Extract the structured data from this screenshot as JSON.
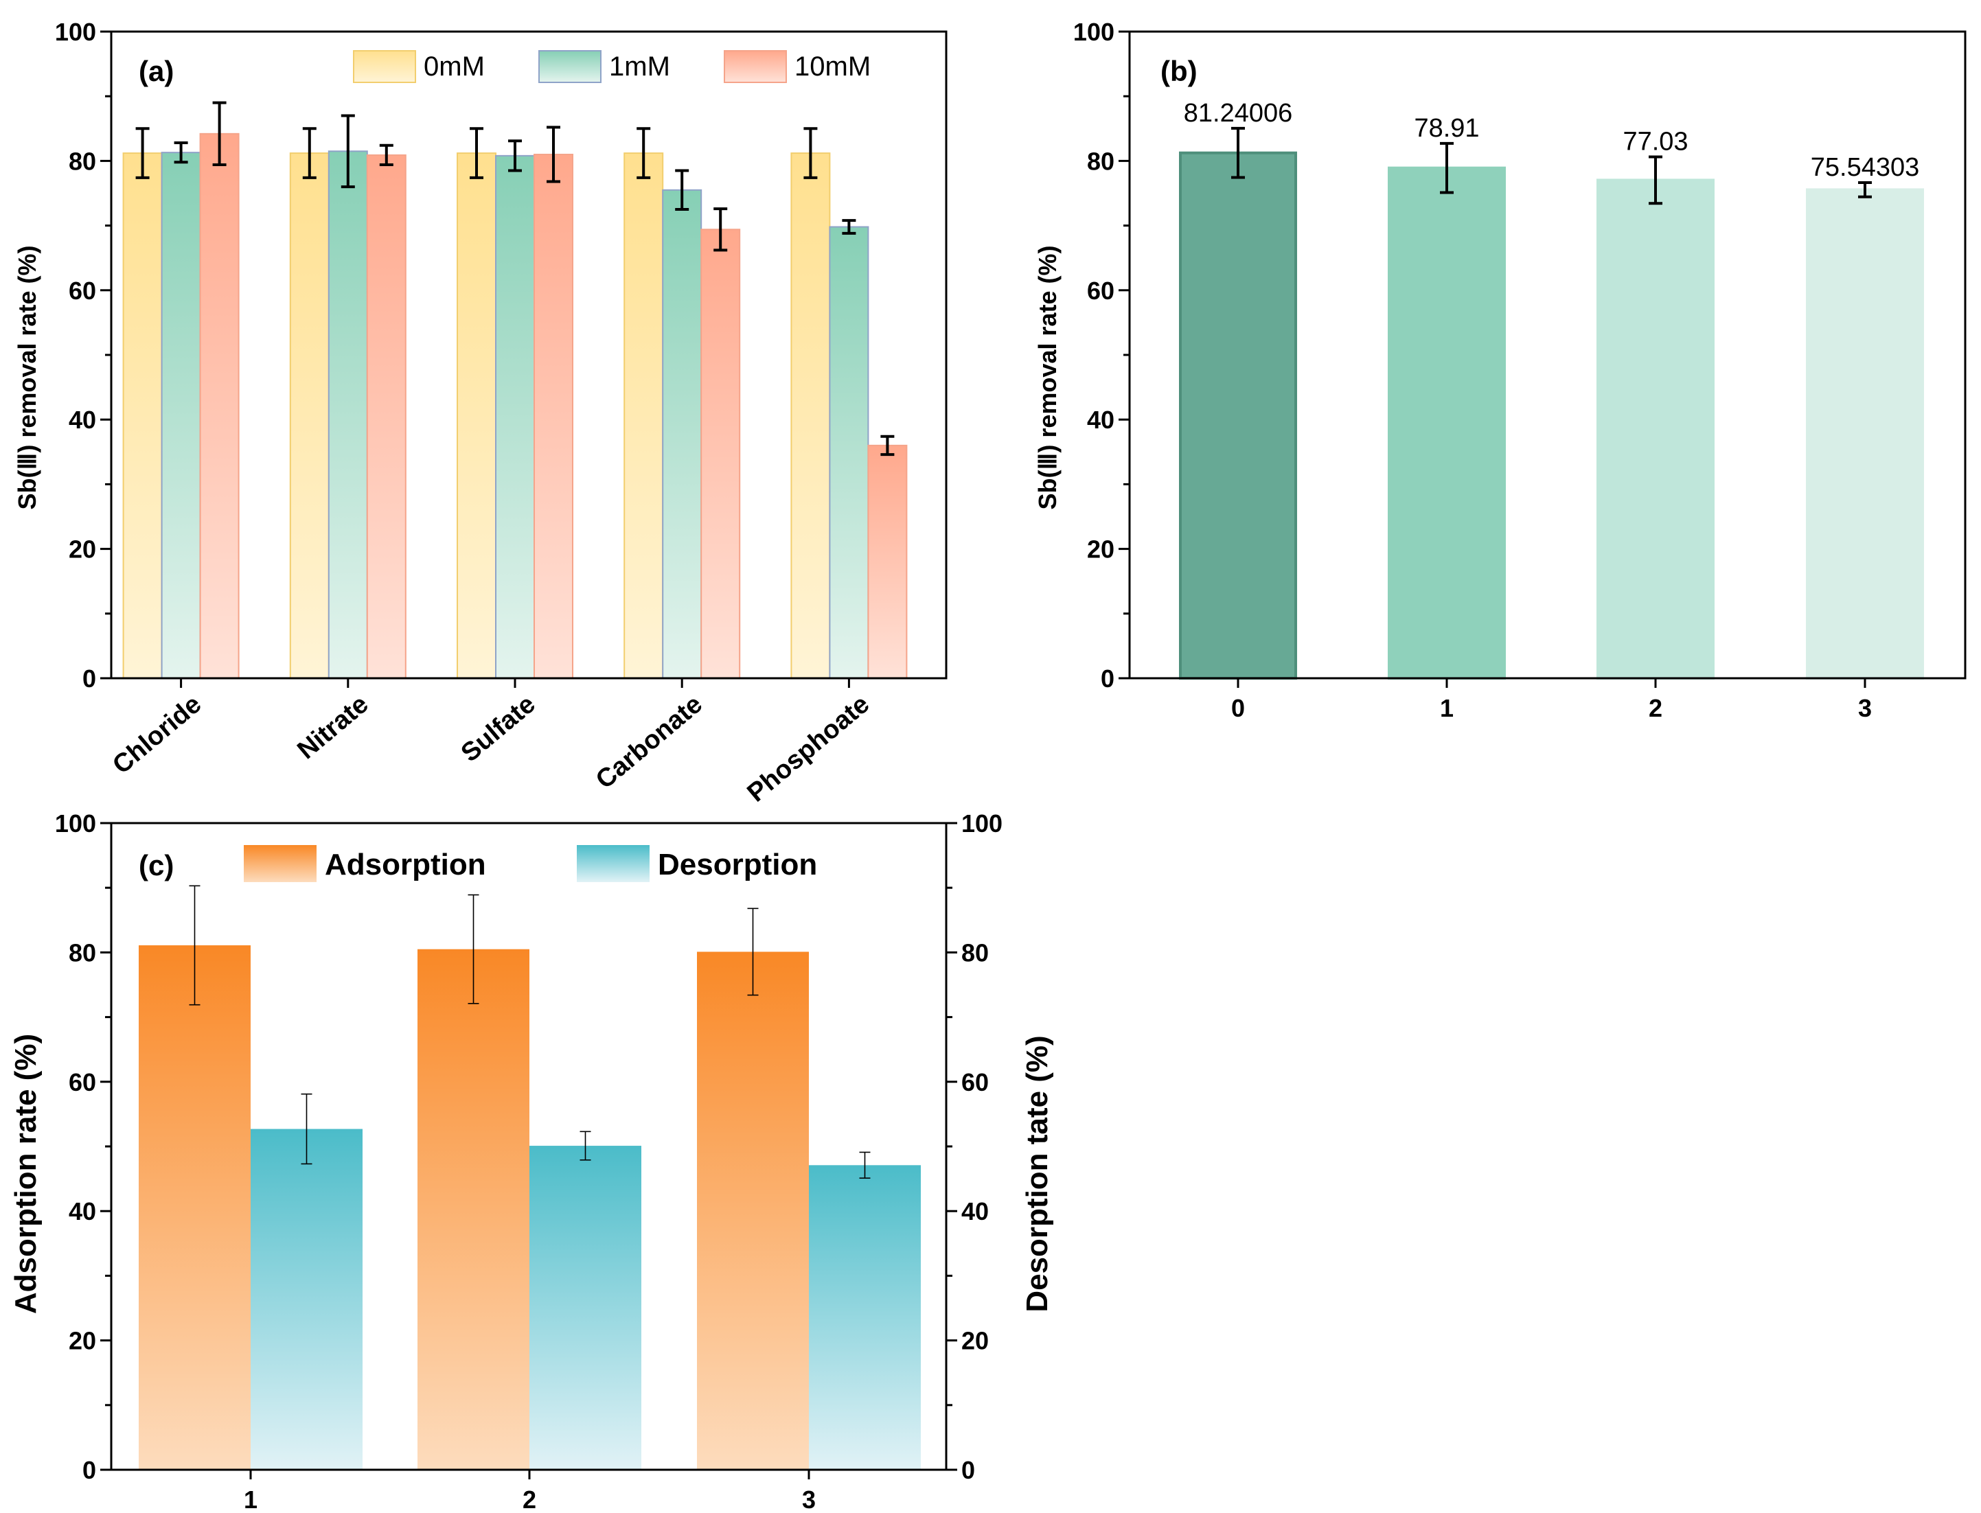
{
  "chart_data": [
    {
      "panel": "(a)",
      "type": "bar",
      "title": "",
      "xlabel": "",
      "ylabel": "Sb(Ⅲ) removal rate (%)",
      "ylim": [
        0,
        100
      ],
      "yticks": [
        0,
        20,
        40,
        60,
        80,
        100
      ],
      "categories": [
        "Chloride",
        "Nitrate",
        "Sulfate",
        "Carbonate",
        "Phosphoate"
      ],
      "series": [
        {
          "name": "0mM",
          "color_top": "#FFE08F",
          "color_bottom": "#FFF4D6",
          "edge": "#F2CE6E",
          "values": [
            81.2,
            81.2,
            81.2,
            81.2,
            81.2
          ],
          "errors": [
            3.8,
            3.8,
            3.8,
            3.8,
            3.8
          ]
        },
        {
          "name": "1mM",
          "color_top": "#86CFB5",
          "color_bottom": "#E4F4EE",
          "edge": "#8FA3C8",
          "values": [
            81.3,
            81.5,
            80.8,
            75.5,
            69.8
          ],
          "errors": [
            1.5,
            5.5,
            2.3,
            3.0,
            1.0
          ]
        },
        {
          "name": "10mM",
          "color_top": "#FFA88C",
          "color_bottom": "#FFE2D8",
          "edge": "#F5A48A",
          "values": [
            84.2,
            80.9,
            81.0,
            69.4,
            36.0
          ],
          "errors": [
            4.8,
            1.5,
            4.2,
            3.2,
            1.4
          ]
        }
      ]
    },
    {
      "panel": "(b)",
      "type": "bar",
      "title": "",
      "xlabel": "",
      "ylabel": "Sb(Ⅲ) removal rate (%)",
      "ylim": [
        0,
        100
      ],
      "yticks": [
        0,
        20,
        40,
        60,
        80,
        100
      ],
      "categories": [
        "0",
        "1",
        "2",
        "3"
      ],
      "values": [
        81.24006,
        78.91,
        77.03,
        75.54303
      ],
      "labels": [
        "81.24006",
        "78.91",
        "77.03",
        "75.54303"
      ],
      "errors": [
        3.8,
        3.8,
        3.6,
        1.1
      ],
      "colors": [
        "#67A995",
        "#8FD1BB",
        "#BFE6DA",
        "#D8EEE7"
      ],
      "edges": [
        "#4E8F7B",
        "#8FD1BB",
        "#BFE6DA",
        "#D8EEE7"
      ]
    },
    {
      "panel": "(c)",
      "type": "bar",
      "title": "",
      "xlabel": "",
      "ylabel": "Adsorption rate (%)",
      "ylabel_right": "Desorption tate (%)",
      "ylim": [
        0,
        100
      ],
      "ylim_right": [
        0,
        100
      ],
      "yticks": [
        0,
        20,
        40,
        60,
        80,
        100
      ],
      "categories": [
        "1",
        "2",
        "3"
      ],
      "series": [
        {
          "name": "Adsorption",
          "axis": "left",
          "color_top": "#F98826",
          "color_bottom": "#FDDCBD",
          "values": [
            81.1,
            80.5,
            80.1
          ],
          "errors": [
            9.2,
            8.4,
            6.7
          ]
        },
        {
          "name": "Desorption",
          "axis": "right",
          "color_top": "#4BBCC9",
          "color_bottom": "#E1F2F6",
          "values": [
            52.7,
            50.1,
            47.1
          ],
          "errors": [
            5.4,
            2.2,
            2.0
          ]
        }
      ]
    }
  ]
}
